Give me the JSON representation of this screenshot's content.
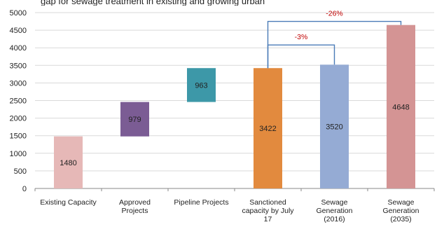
{
  "top_cut_text": "gap for sewage treatment in existing and growing urban",
  "chart_data": {
    "type": "bar",
    "style": "waterfall",
    "categories": [
      [
        "Existing Capacity"
      ],
      [
        "Approved",
        "Projects"
      ],
      [
        "Pipeline Projects"
      ],
      [
        "Sanctioned",
        "capacity by July",
        "17"
      ],
      [
        "Sewage",
        "Generation",
        "(2016)"
      ],
      [
        "Sewage",
        "Generation",
        "(2035)"
      ]
    ],
    "bars": [
      {
        "base": 0,
        "value": 1480,
        "label": "1480",
        "color": "#e6b8b7"
      },
      {
        "base": 1480,
        "value": 979,
        "label": "979",
        "color": "#7b5c94"
      },
      {
        "base": 2459,
        "value": 963,
        "label": "963",
        "color": "#3d98a8"
      },
      {
        "base": 0,
        "value": 3422,
        "label": "3422",
        "color": "#e28a3e"
      },
      {
        "base": 0,
        "value": 3520,
        "label": "3520",
        "color": "#95abd4"
      },
      {
        "base": 0,
        "value": 4648,
        "label": "4648",
        "color": "#d49494"
      }
    ],
    "ylim": [
      0,
      5000
    ],
    "yticks": [
      0,
      500,
      1000,
      1500,
      2000,
      2500,
      3000,
      3500,
      4000,
      4500,
      5000
    ],
    "gridlines": true,
    "annotations": [
      {
        "text": "-3%",
        "from_bar": 3,
        "to_bar": 4,
        "level": 4080,
        "color": "#c00000",
        "line_color": "#4a7bb7"
      },
      {
        "text": "-26%",
        "from_bar": 3,
        "to_bar": 5,
        "level": 4750,
        "color": "#c00000",
        "line_color": "#4a7bb7"
      }
    ]
  }
}
